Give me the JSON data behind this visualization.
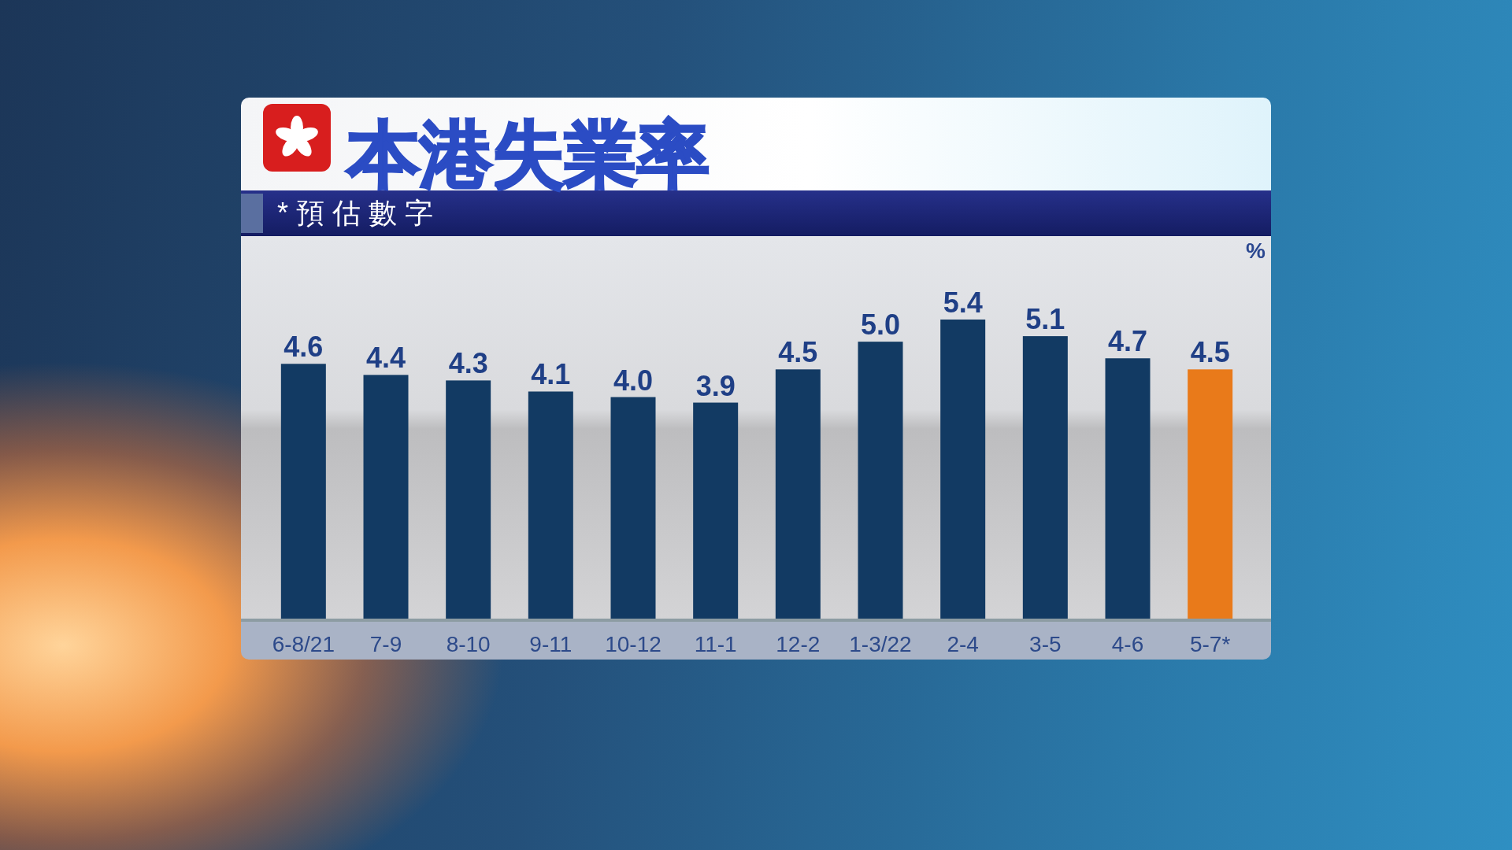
{
  "chart_data": {
    "type": "bar",
    "title": "本港失業率",
    "subtitle": "*預估數字",
    "ylabel": "%",
    "categories": [
      "6-8/21",
      "7-9",
      "8-10",
      "9-11",
      "10-12",
      "11-1",
      "12-2",
      "1-3/22",
      "2-4",
      "3-5",
      "4-6",
      "5-7*"
    ],
    "values": [
      4.6,
      4.4,
      4.3,
      4.1,
      4.0,
      3.9,
      4.5,
      5.0,
      5.4,
      5.1,
      4.7,
      4.5
    ],
    "colors": [
      "#123a63",
      "#123a63",
      "#123a63",
      "#123a63",
      "#123a63",
      "#123a63",
      "#123a63",
      "#123a63",
      "#123a63",
      "#123a63",
      "#123a63",
      "#e97a1a"
    ],
    "value_labels": [
      "4.6",
      "4.4",
      "4.3",
      "4.1",
      "4.0",
      "3.9",
      "4.5",
      "5.0",
      "5.4",
      "5.1",
      "4.7",
      "4.5"
    ]
  }
}
